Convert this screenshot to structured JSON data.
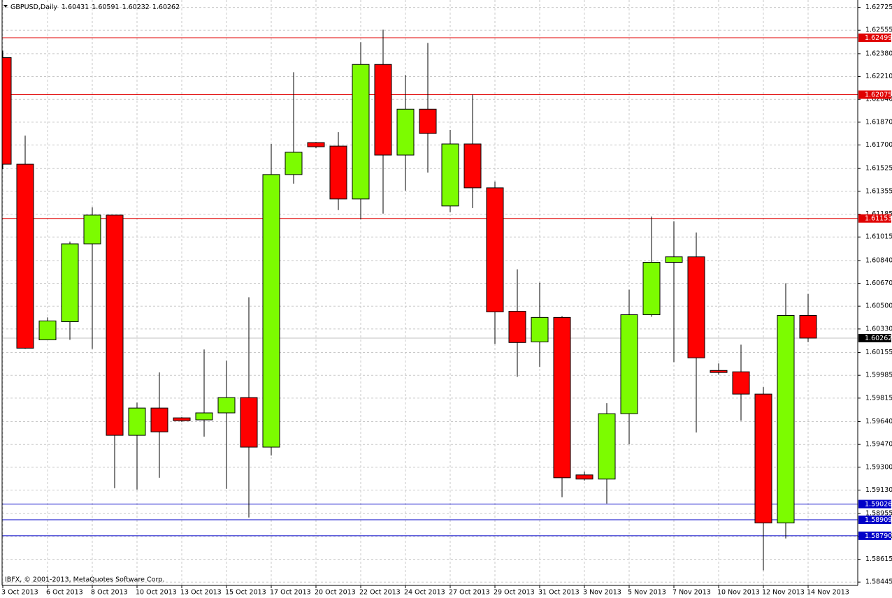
{
  "chart_data": {
    "type": "candlestick",
    "title": "GBPUSD,Daily",
    "note": "IBFX, © 2001-2013, MetaQuotes Software Corp.",
    "categories": [
      "3 Oct 2013",
      null,
      "6 Oct 2013",
      null,
      "8 Oct 2013",
      null,
      "10 Oct 2013",
      null,
      "13 Oct 2013",
      null,
      "15 Oct 2013",
      null,
      "17 Oct 2013",
      null,
      "20 Oct 2013",
      null,
      "22 Oct 2013",
      null,
      "24 Oct 2013",
      null,
      "27 Oct 2013",
      null,
      "29 Oct 2013",
      null,
      "31 Oct 2013",
      null,
      "3 Nov 2013",
      null,
      "5 Nov 2013",
      null,
      "7 Nov 2013",
      null,
      "10 Nov 2013",
      null,
      "12 Nov 2013",
      null,
      "14 Nov 2013"
    ],
    "open": [
      1.62351,
      1.61557,
      1.60249,
      1.60384,
      1.60964,
      1.61178,
      1.59538,
      1.59741,
      1.59668,
      1.59653,
      1.59705,
      1.59819,
      1.5945,
      1.6148,
      1.61718,
      1.61692,
      1.61298,
      1.623,
      1.61625,
      1.61967,
      1.61246,
      1.61708,
      1.61381,
      1.60462,
      1.60234,
      1.60416,
      1.59243,
      1.59212,
      1.59699,
      1.60436,
      1.60826,
      1.60867,
      1.60021,
      1.60011,
      1.59845,
      1.58885,
      1.60431
    ],
    "high": [
      1.62403,
      1.6177,
      1.60416,
      1.60981,
      1.61236,
      1.61178,
      1.59782,
      1.60006,
      1.59673,
      1.60177,
      1.60094,
      1.60566,
      1.61708,
      1.62242,
      1.61723,
      1.61796,
      1.62466,
      1.62559,
      1.62222,
      1.6246,
      1.61812,
      1.62076,
      1.61428,
      1.60774,
      1.60675,
      1.60426,
      1.59268,
      1.59777,
      1.60623,
      1.61168,
      1.61132,
      1.61049,
      1.60073,
      1.60213,
      1.59897,
      1.6067,
      1.60591
    ],
    "low": [
      1.61521,
      1.60182,
      1.60249,
      1.60249,
      1.60182,
      1.59144,
      1.59134,
      1.59222,
      1.59637,
      1.59528,
      1.59139,
      1.58926,
      1.59388,
      1.61412,
      1.61677,
      1.61215,
      1.61147,
      1.61189,
      1.6136,
      1.61495,
      1.61199,
      1.6123,
      1.60218,
      1.59974,
      1.60047,
      1.59077,
      1.59201,
      1.5903,
      1.59471,
      1.60421,
      1.60083,
      1.59559,
      1.5999,
      1.59647,
      1.58532,
      1.5877,
      1.60232
    ],
    "close": [
      1.61557,
      1.60187,
      1.6039,
      1.60964,
      1.61178,
      1.59538,
      1.59741,
      1.59564,
      1.59647,
      1.59705,
      1.59819,
      1.5945,
      1.6148,
      1.61646,
      1.61687,
      1.61298,
      1.623,
      1.61625,
      1.61967,
      1.61786,
      1.61708,
      1.61381,
      1.60457,
      1.60229,
      1.60416,
      1.59222,
      1.59212,
      1.59699,
      1.60436,
      1.60826,
      1.60867,
      1.60115,
      1.60006,
      1.59845,
      1.58885,
      1.60431,
      1.60262
    ],
    "up_color": "#7cfc00",
    "down_color": "#ff0000",
    "ylim": [
      1.5842,
      1.6278
    ],
    "yticks": [
      1.62725,
      1.62555,
      {
        "value": 1.6238,
        "label": "1.62380"
      },
      {
        "value": 1.6221,
        "label": "1.62210"
      },
      {
        "value": 1.6204,
        "label": "1.62040"
      },
      {
        "value": 1.6187,
        "label": "1.61870"
      },
      {
        "value": 1.617,
        "label": "1.61700"
      },
      1.61525,
      1.61355,
      1.61185,
      1.61015,
      {
        "value": 1.6084,
        "label": "1.60840"
      },
      {
        "value": 1.6067,
        "label": "1.60670"
      },
      {
        "value": 1.605,
        "label": "1.60500"
      },
      {
        "value": 1.6033,
        "label": "1.60330"
      },
      1.60155,
      1.59985,
      1.59815,
      {
        "value": 1.5964,
        "label": "1.59640"
      },
      {
        "value": 1.5947,
        "label": "1.59470"
      },
      {
        "value": 1.593,
        "label": "1.59300"
      },
      {
        "value": 1.5913,
        "label": "1.59130"
      },
      1.58955,
      1.58785,
      1.58615,
      1.58445
    ],
    "grid": true,
    "levels": [
      {
        "value": 1.62499,
        "color": "#e00000"
      },
      {
        "value": 1.62075,
        "color": "#e00000"
      },
      {
        "value": 1.61153,
        "color": "#e00000"
      },
      {
        "value": 1.59026,
        "color": "#0000c8"
      },
      {
        "value": 1.58909,
        "color": "#0000c8"
      },
      {
        "value": 1.5879,
        "label": "1.58790",
        "color": "#0000c8"
      }
    ],
    "current_price_color": "#c0c0c0"
  }
}
